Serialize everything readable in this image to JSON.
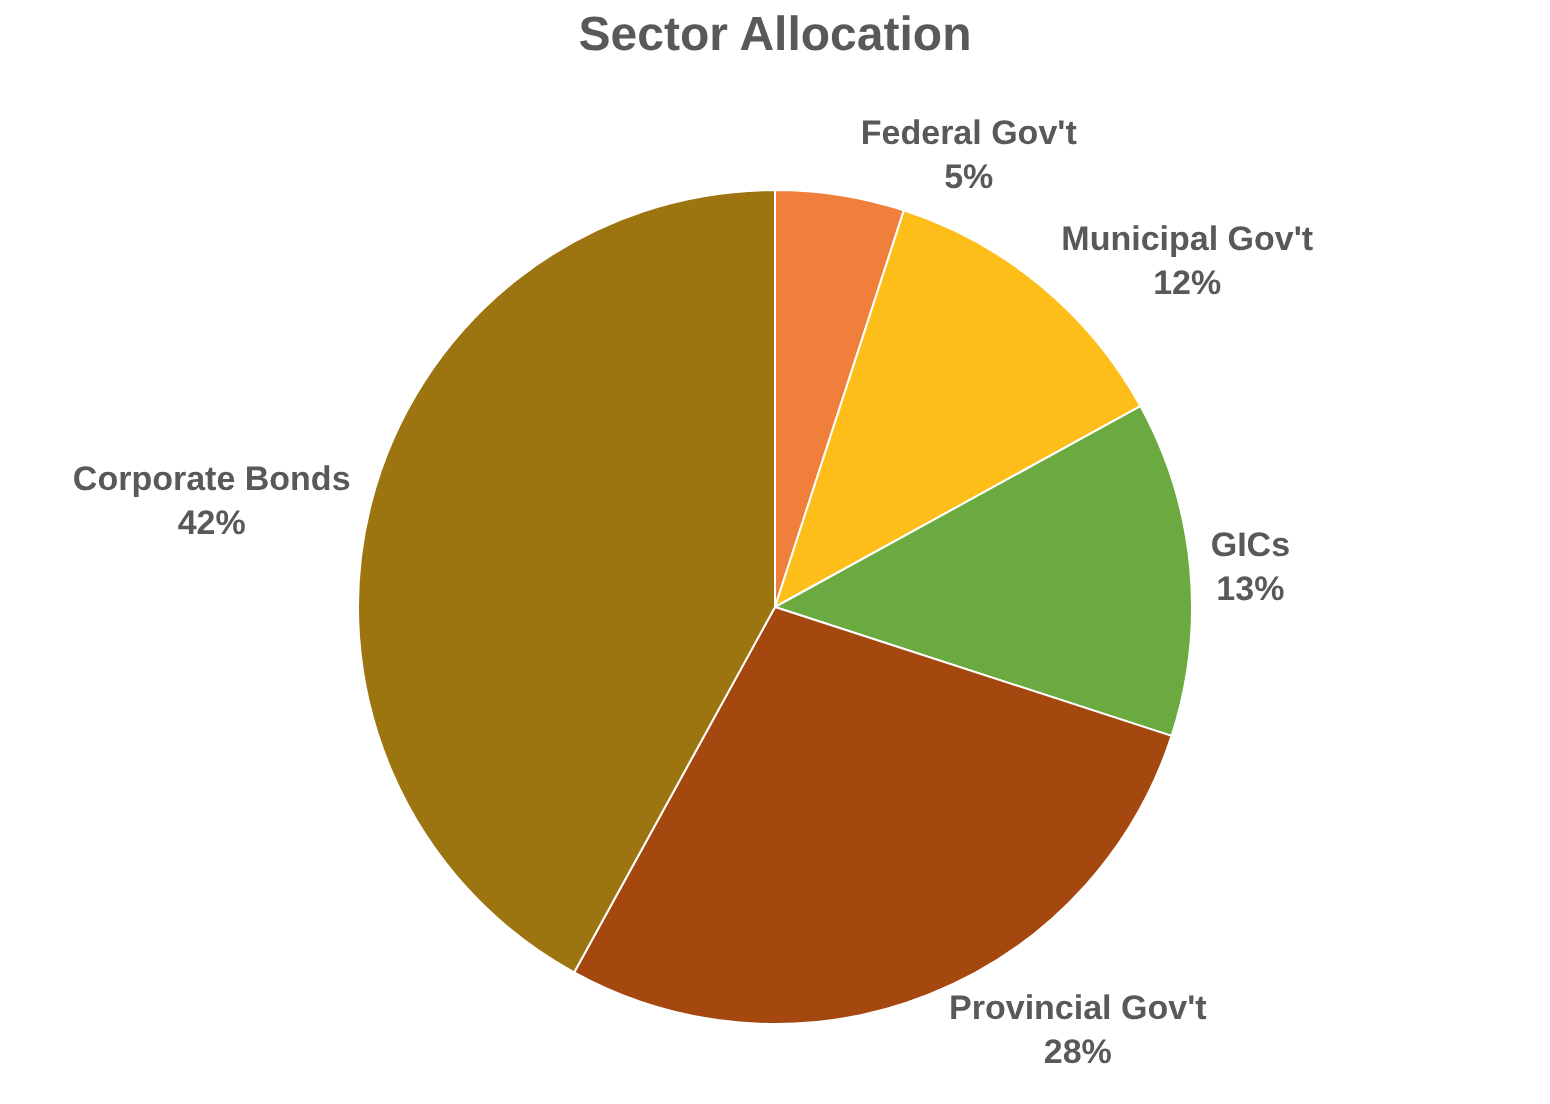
{
  "chart_data": {
    "type": "pie",
    "title": "Sector Allocation",
    "categories": [
      "Federal Gov't",
      "Municipal Gov't",
      "GICs",
      "Provincial Gov't",
      "Corporate Bonds"
    ],
    "values": [
      5,
      12,
      13,
      28,
      42
    ],
    "value_labels": [
      "5%",
      "12%",
      "13%",
      "28%",
      "42%"
    ],
    "colors": [
      "#ef7f3a",
      "#fdbe1a",
      "#6aaa40",
      "#a4480f",
      "#9c7410"
    ],
    "legend": false
  }
}
